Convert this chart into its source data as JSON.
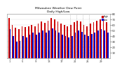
{
  "title": "Milwaukee Weather Dew Point",
  "subtitle": "Daily High/Low",
  "high_values": [
    72,
    60,
    55,
    52,
    58,
    56,
    58,
    60,
    58,
    62,
    66,
    64,
    68,
    72,
    70,
    66,
    62,
    60,
    58,
    60,
    65,
    68,
    66,
    60,
    58,
    62,
    65,
    68,
    70,
    68,
    65
  ],
  "low_values": [
    52,
    40,
    30,
    32,
    40,
    38,
    42,
    46,
    42,
    46,
    50,
    46,
    50,
    54,
    50,
    46,
    42,
    40,
    38,
    40,
    46,
    50,
    48,
    42,
    40,
    44,
    46,
    50,
    52,
    50,
    46
  ],
  "high_color": "#cc0000",
  "low_color": "#0000cc",
  "ylim_min": 0,
  "ylim_max": 80,
  "yticks": [
    10,
    20,
    30,
    40,
    50,
    60,
    70,
    80
  ],
  "background_color": "#ffffff",
  "grid_color": "#cccccc",
  "bar_width": 0.38,
  "dashed_vlines_x": [
    18.5,
    20.5,
    22.5,
    24.5
  ],
  "legend_high": "High",
  "legend_low": "Low",
  "xtick_positions": [
    0,
    4,
    8,
    12,
    16,
    20,
    24,
    28
  ],
  "xtick_labels": [
    "1",
    "5",
    "9",
    "13",
    "17",
    "21",
    "25",
    "29"
  ]
}
